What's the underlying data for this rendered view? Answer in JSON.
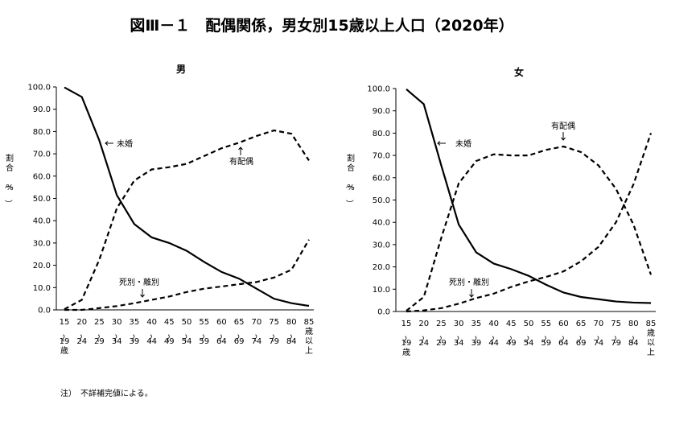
{
  "title": "図Ⅲ－１　配偶関係，男女別15歳以上人口（2020年）",
  "note": "注）　不詳補完値による。",
  "chart_data": [
    {
      "type": "line",
      "title": "男",
      "y_label": "割合（%）",
      "categories": [
        "15～19歳",
        "20～24",
        "25～29",
        "30～34",
        "35～39",
        "40～44",
        "45～49",
        "50～54",
        "55～59",
        "60～64",
        "65～69",
        "70～74",
        "75～79",
        "80～84",
        "85歳以上"
      ],
      "ylim": [
        0,
        100
      ],
      "yticks": [
        {
          "value": 0,
          "label": "0.0"
        },
        {
          "value": 10,
          "label": "10.0"
        },
        {
          "value": 20,
          "label": "20.0"
        },
        {
          "value": 30,
          "label": "30.0"
        },
        {
          "value": 40,
          "label": "40.0"
        },
        {
          "value": 50,
          "label": "50.0"
        },
        {
          "value": 60,
          "label": "60.0"
        },
        {
          "value": 70,
          "label": "70.0"
        },
        {
          "value": 80,
          "label": "80.0"
        },
        {
          "value": 90,
          "label": "90.0"
        },
        {
          "value": 100,
          "label": "100.0"
        }
      ],
      "grid": false,
      "series": [
        {
          "name": "未婚",
          "color": "#000000",
          "linestyle": "solid",
          "values": [
            99.8,
            95.5,
            76,
            51.5,
            38.5,
            32.5,
            30,
            26.5,
            21.5,
            17,
            14,
            9.5,
            5,
            3,
            1.8
          ]
        },
        {
          "name": "有配偶",
          "color": "#000000",
          "linestyle": "dashed",
          "values": [
            0.3,
            4.5,
            22.5,
            45.5,
            58,
            63,
            64,
            65.5,
            69,
            72.5,
            75,
            78,
            80.5,
            79,
            67
          ]
        },
        {
          "name": "死別・離別",
          "color": "#000000",
          "linestyle": "dashed",
          "values": [
            0,
            0,
            0.8,
            1.7,
            3,
            4.5,
            6,
            8,
            9.5,
            10.5,
            11.5,
            12.5,
            14.5,
            18,
            31.5
          ]
        }
      ]
    },
    {
      "type": "line",
      "title": "女",
      "y_label": "割合（%）",
      "categories": [
        "15～19歳",
        "20～24",
        "25～29",
        "30～34",
        "35～39",
        "40～44",
        "45～49",
        "50～54",
        "55～59",
        "60～64",
        "65～69",
        "70～74",
        "75～79",
        "80～84",
        "85歳以上"
      ],
      "ylim": [
        0,
        100
      ],
      "yticks": [
        {
          "value": 0,
          "label": "0.0"
        },
        {
          "value": 10,
          "label": "10.0"
        },
        {
          "value": 20,
          "label": "20.0"
        },
        {
          "value": 30,
          "label": "30.0"
        },
        {
          "value": 40,
          "label": "40.0"
        },
        {
          "value": 50,
          "label": "50.0"
        },
        {
          "value": 60,
          "label": "60.0"
        },
        {
          "value": 70,
          "label": "70.0"
        },
        {
          "value": 80,
          "label": "80.0"
        },
        {
          "value": 90,
          "label": "90.0"
        },
        {
          "value": 100,
          "label": "100.0"
        }
      ],
      "grid": false,
      "series": [
        {
          "name": "未婚",
          "color": "#000000",
          "linestyle": "solid",
          "values": [
            99.7,
            93,
            65.5,
            39,
            26.5,
            21.5,
            19,
            16,
            12,
            8.5,
            6.5,
            5.5,
            4.5,
            4,
            3.8
          ]
        },
        {
          "name": "有配偶",
          "color": "#000000",
          "linestyle": "dashed",
          "values": [
            0.3,
            6.5,
            33,
            57.5,
            67.5,
            70.5,
            70,
            70,
            72.5,
            74,
            71.5,
            65.5,
            55,
            39,
            16.5
          ]
        },
        {
          "name": "死別・離別",
          "color": "#000000",
          "linestyle": "dashed",
          "values": [
            0,
            0.5,
            1.5,
            3.5,
            6,
            8,
            11,
            13.5,
            15.5,
            18,
            22.5,
            29,
            40,
            57,
            80
          ]
        }
      ]
    }
  ]
}
